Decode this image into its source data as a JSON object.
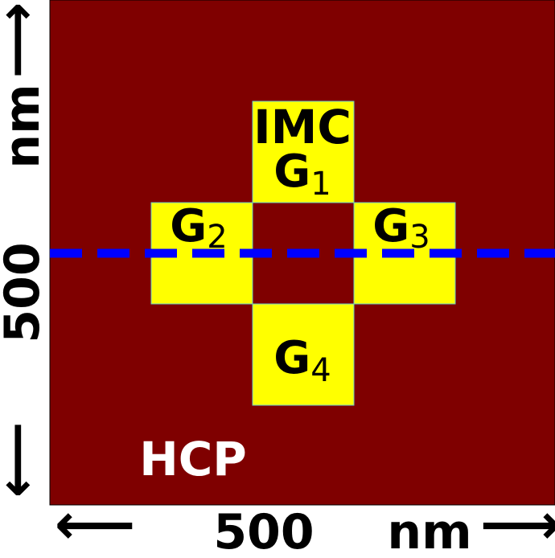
{
  "colors": {
    "matrix": "#7f0000",
    "grain": "#ffff00",
    "grain_edge": "#66cccc",
    "line": "#0000ff",
    "text_dark": "#000000",
    "text_light": "#ffffff"
  },
  "phases": {
    "matrix_label": "HCP",
    "grain_label": "IMC"
  },
  "grains": [
    {
      "base": "G",
      "sub": "1"
    },
    {
      "base": "G",
      "sub": "2"
    },
    {
      "base": "G",
      "sub": "3"
    },
    {
      "base": "G",
      "sub": "4"
    }
  ],
  "axes": {
    "x": {
      "value": "500",
      "unit": "nm",
      "left_arrow": "⟵",
      "right_arrow": "⟶"
    },
    "y": {
      "value": "500",
      "unit": "nm",
      "up_arrow": "⟶",
      "down_arrow": "⟵"
    }
  }
}
